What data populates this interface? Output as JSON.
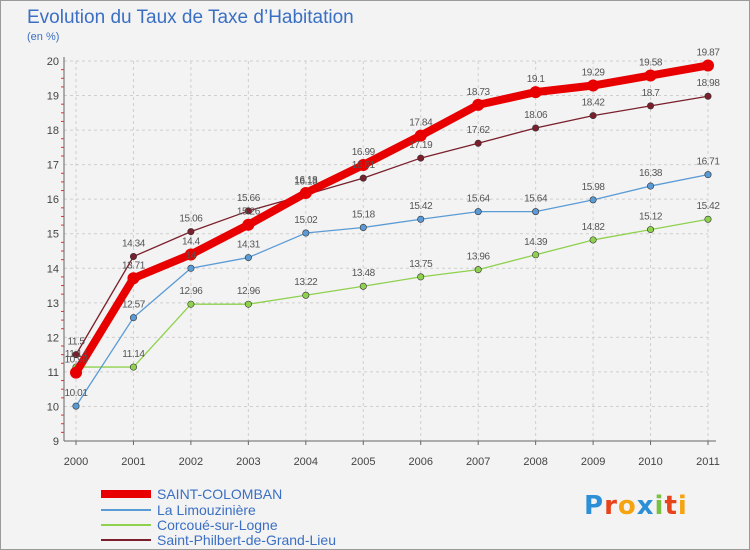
{
  "title": "Evolution du Taux de Taxe d’Habitation",
  "unit": "(en %)",
  "logo": {
    "text": "Proxiti",
    "colors": [
      "#2d8fd5",
      "#e8441b",
      "#f5a310",
      "#2d8fd5",
      "#7ac143",
      "#e8441b",
      "#f5a310"
    ]
  },
  "chart_data": {
    "type": "line",
    "title": "Evolution du Taux de Taxe d’Habitation",
    "ylabel": "(en %)",
    "categories": [
      "2000",
      "2001",
      "2002",
      "2003",
      "2004",
      "2005",
      "2006",
      "2007",
      "2008",
      "2009",
      "2010",
      "2011"
    ],
    "ylim": [
      9,
      20
    ],
    "yticks": [
      "9",
      "10",
      "11",
      "12",
      "13",
      "14",
      "15",
      "16",
      "17",
      "18",
      "19",
      "20"
    ],
    "grid": true,
    "legend_position": "bottom-left",
    "series": [
      {
        "name": "SAINT-COLOMBAN",
        "color": "#e80000",
        "values": [
          10.98,
          13.71,
          14.4,
          15.26,
          16.18,
          16.99,
          17.84,
          18.73,
          19.1,
          19.29,
          19.58,
          19.87
        ],
        "labels": [
          "10.98",
          "13.71",
          "14.4",
          "15.26",
          "16.18",
          "16.99",
          "17.84",
          "18.73",
          "19.1",
          "19.29",
          "19.58",
          "19.87"
        ]
      },
      {
        "name": "La Limouzinière",
        "color": "#5b9bd5",
        "values": [
          10.01,
          12.57,
          14,
          14.31,
          15.02,
          15.18,
          15.42,
          15.64,
          15.64,
          15.98,
          16.38,
          16.71
        ],
        "labels": [
          "10.01",
          "12.57",
          "14",
          "14.31",
          "15.02",
          "15.18",
          "15.42",
          "15.64",
          "15.64",
          "15.98",
          "16.38",
          "16.71"
        ]
      },
      {
        "name": "Corcoué-sur-Logne",
        "color": "#8fd14f",
        "values": [
          11.14,
          11.14,
          12.96,
          12.96,
          13.22,
          13.48,
          13.75,
          13.96,
          14.39,
          14.82,
          15.12,
          15.42
        ],
        "labels": [
          "11.14",
          "11.14",
          "12.96",
          "12.96",
          "13.22",
          "13.48",
          "13.75",
          "13.96",
          "14.39",
          "14.82",
          "15.12",
          "15.42"
        ]
      },
      {
        "name": "Saint-Philbert-de-Grand-Lieu",
        "color": "#7a1f2b",
        "values": [
          11.5,
          14.34,
          15.06,
          15.66,
          16.13,
          16.61,
          17.19,
          17.62,
          18.06,
          18.42,
          18.7,
          18.98
        ],
        "labels": [
          "11.5",
          "14.34",
          "15.06",
          "15.66",
          "16.13",
          "16.61",
          "17.19",
          "17.62",
          "18.06",
          "18.42",
          "18.7",
          "18.98"
        ]
      }
    ]
  }
}
